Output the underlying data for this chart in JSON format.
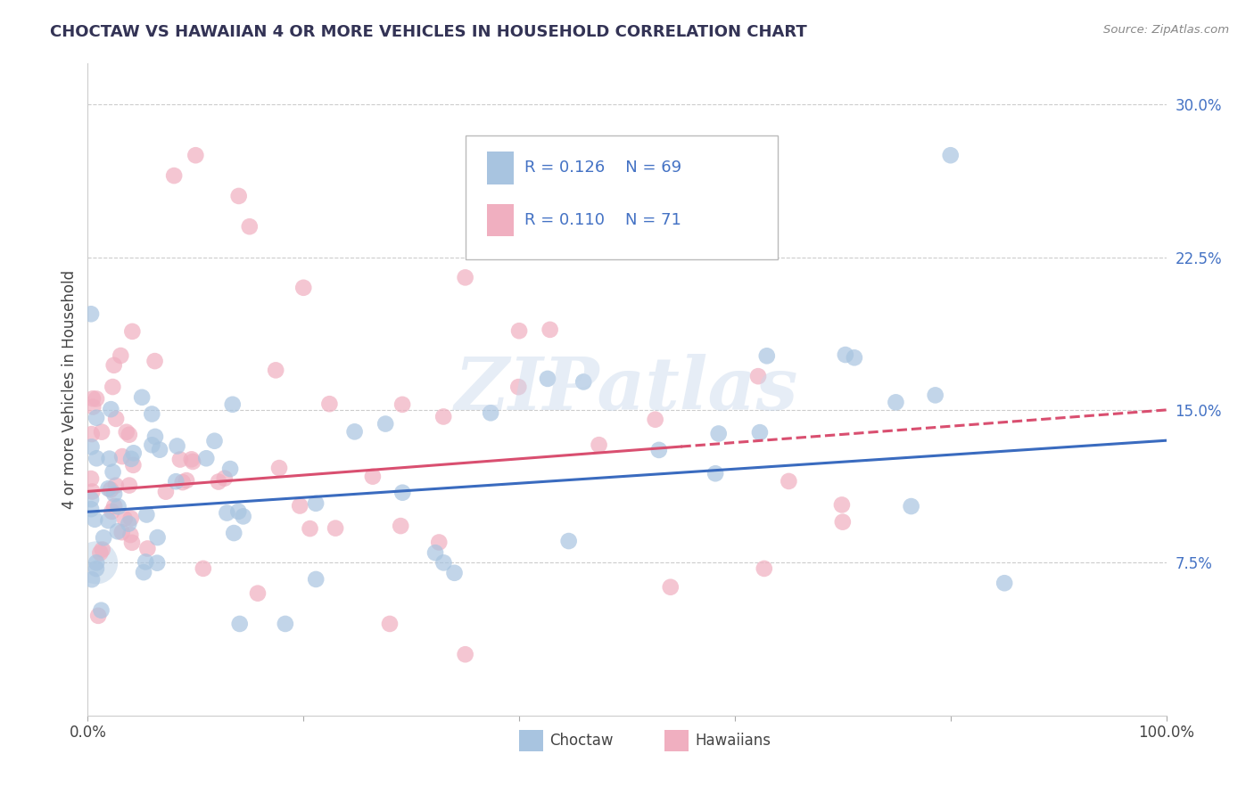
{
  "title": "CHOCTAW VS HAWAIIAN 4 OR MORE VEHICLES IN HOUSEHOLD CORRELATION CHART",
  "source": "Source: ZipAtlas.com",
  "ylabel": "4 or more Vehicles in Household",
  "xlim": [
    0,
    100
  ],
  "ylim": [
    0,
    32
  ],
  "ytick_vals": [
    0,
    7.5,
    15.0,
    22.5,
    30.0
  ],
  "ytick_labels": [
    "",
    "7.5%",
    "15.0%",
    "22.5%",
    "30.0%"
  ],
  "color_choctaw": "#a8c4e0",
  "color_hawaiian": "#f0afc0",
  "color_line_choctaw": "#3a6bbf",
  "color_line_hawaiian": "#d94f70",
  "watermark_text": "ZIPatlas",
  "choctaw_line_x0": 0,
  "choctaw_line_y0": 10.0,
  "choctaw_line_x1": 100,
  "choctaw_line_y1": 13.5,
  "hawaiian_line_x0": 0,
  "hawaiian_line_y0": 11.0,
  "hawaiian_line_solid_end_x": 55,
  "hawaiian_line_solid_end_y": 13.2,
  "hawaiian_line_x1": 100,
  "hawaiian_line_y1": 15.0
}
